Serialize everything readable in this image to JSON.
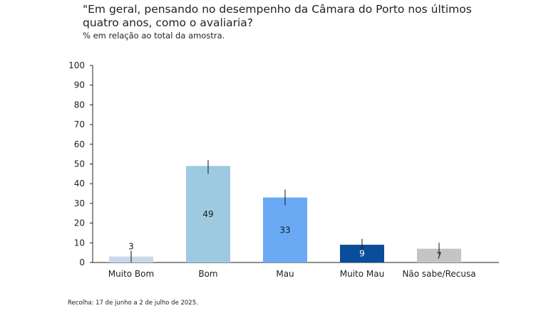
{
  "title": "\"Em geral, pensando no desempenho da Câmara do Porto nos últimos quatro anos, como o avaliaria?",
  "subtitle": "% em relação ao total da amostra.",
  "footnote": "Recolha: 17 de junho a 2 de julho de 2025.",
  "chart_data": {
    "type": "bar",
    "categories": [
      "Muito Bom",
      "Bom",
      "Mau",
      "Muito Mau",
      "Não sabe/Recusa"
    ],
    "values": [
      3,
      49,
      33,
      9,
      7
    ],
    "labels": [
      "3",
      "49",
      "33",
      "9",
      "7"
    ],
    "error_bars": [
      [
        0,
        6
      ],
      [
        45,
        52
      ],
      [
        29,
        37
      ],
      [
        6,
        12
      ],
      [
        4,
        10
      ]
    ],
    "colors": [
      "#c6d9ea",
      "#9ecae1",
      "#6aaaf5",
      "#0a4d9a",
      "#c4c4c4"
    ],
    "label_colors": [
      "#1a1a1a",
      "#1a1a1a",
      "#1a1a1a",
      "#ffffff",
      "#1a1a1a"
    ],
    "ylim": [
      0,
      100
    ],
    "yticks": [
      0,
      10,
      20,
      30,
      40,
      50,
      60,
      70,
      80,
      90,
      100
    ],
    "grid": false,
    "legend": "none"
  }
}
